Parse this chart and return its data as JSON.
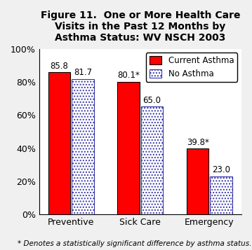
{
  "title": "Figure 11.  One or More Health Care\nVisits in the Past 12 Months by\nAsthma Status: WV NSCH 2003",
  "categories": [
    "Preventive",
    "Sick Care",
    "Emergency"
  ],
  "current_asthma": [
    85.8,
    80.1,
    39.8
  ],
  "no_asthma": [
    81.7,
    65.0,
    23.0
  ],
  "labels_current": [
    "85.8",
    "80.1*",
    "39.8*"
  ],
  "labels_no_asthma": [
    "81.7",
    "65.0",
    "23.0"
  ],
  "bar_color_current": "#ff0000",
  "bar_color_no_asthma": "#ffffff",
  "ylim": [
    0,
    100
  ],
  "yticks": [
    0,
    20,
    40,
    60,
    80,
    100
  ],
  "ytick_labels": [
    "0%",
    "20%",
    "40%",
    "60%",
    "80%",
    "100%"
  ],
  "legend_labels": [
    "Current Asthma",
    "No Asthma"
  ],
  "footnote": "* Denotes a statistically significant difference by asthma status.",
  "title_fontsize": 10,
  "axis_fontsize": 9,
  "label_fontsize": 8.5,
  "legend_fontsize": 8.5,
  "footnote_fontsize": 7.5,
  "background_color": "#f0f0f0"
}
